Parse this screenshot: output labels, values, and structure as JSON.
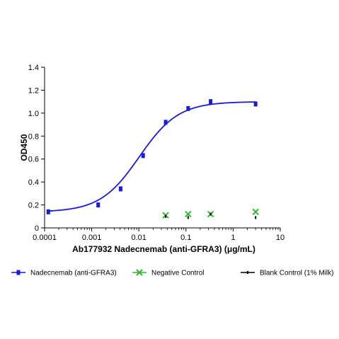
{
  "chart_data": {
    "type": "scatter",
    "xlabel": "Ab177932 Nadecnemab (anti-GFRA3) (μg/mL)",
    "ylabel": "OD450",
    "x_scale": "log",
    "xlim": [
      0.0001,
      10
    ],
    "ylim": [
      0,
      1.4
    ],
    "x_ticks": [
      0.0001,
      0.001,
      0.01,
      0.1,
      1,
      10
    ],
    "x_tick_labels": [
      "0.0001",
      "0.001",
      "0.01",
      "0.1",
      "1",
      "10"
    ],
    "y_ticks": [
      0,
      0.2,
      0.4,
      0.6,
      0.8,
      1.0,
      1.2,
      1.4
    ],
    "y_tick_labels": [
      "0",
      "0.2",
      "0.4",
      "0.6",
      "0.8",
      "1.0",
      "1.2",
      "1.4"
    ],
    "grid": false,
    "legend_position": "bottom",
    "series": [
      {
        "name": "Nadecnemab (anti-GFRA3)",
        "color": "#1a1adb",
        "marker": "square",
        "fit": "4PL",
        "x": [
          0.00012,
          0.00137,
          0.0041,
          0.0123,
          0.037,
          0.111,
          0.333,
          3.0
        ],
        "y": [
          0.14,
          0.2,
          0.34,
          0.63,
          0.92,
          1.04,
          1.1,
          1.08
        ]
      },
      {
        "name": "Negative Control",
        "color": "#2fb82f",
        "marker": "x",
        "x": [
          0.037,
          0.111,
          0.333,
          3.0
        ],
        "y": [
          0.11,
          0.12,
          0.12,
          0.14
        ]
      },
      {
        "name": "Blank Control (1% Milk)",
        "color": "#000000",
        "marker": "dot",
        "x": [
          0.037,
          0.111,
          0.333,
          3.0
        ],
        "y": [
          0.1,
          0.09,
          0.12,
          0.09
        ]
      }
    ]
  }
}
